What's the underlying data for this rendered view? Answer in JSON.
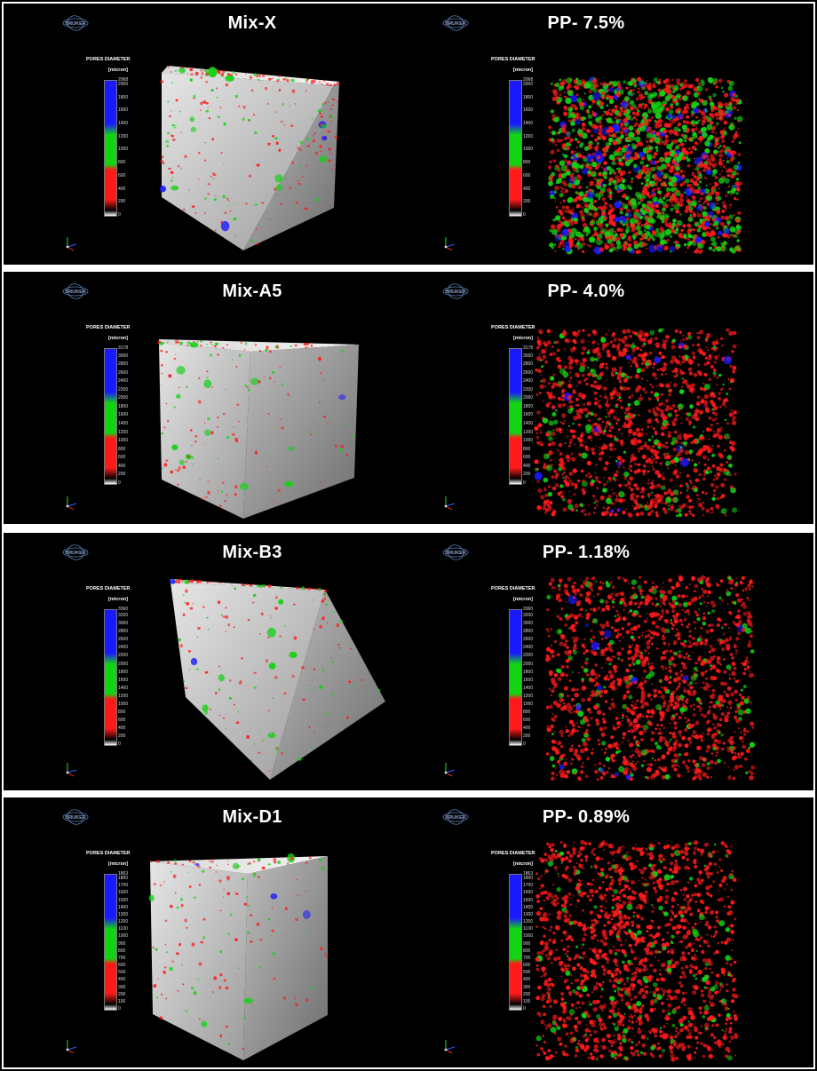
{
  "logo_text": "BRUKER",
  "legend": {
    "title": "PORES DIAMETER",
    "unit": "[micron]"
  },
  "colors": {
    "small": "#ff1a1a",
    "medium": "#14d214",
    "large": "#1a1aff",
    "background": "#000000"
  },
  "rows": [
    {
      "left_title": "Mix-X",
      "right_title": "PP- 7.5%",
      "legend_ticks": [
        "2068",
        "2000",
        "1800",
        "1600",
        "1400",
        "1200",
        "1000",
        "800",
        "600",
        "400",
        "200",
        "0"
      ],
      "left_specimen": "mostly gray cube with sparse pores",
      "right_specimen": "dense red pore cloud with green and blue pores"
    },
    {
      "left_title": "Mix-A5",
      "right_title": "PP- 4.0%",
      "legend_ticks": [
        "3178",
        "3000",
        "2800",
        "2600",
        "2400",
        "2200",
        "2000",
        "1800",
        "1600",
        "1400",
        "1200",
        "1000",
        "800",
        "600",
        "400",
        "200",
        "0"
      ],
      "left_specimen": "bright gray cube with sparse pores",
      "right_specimen": "red pore cloud with green pores"
    },
    {
      "left_title": "Mix-B3",
      "right_title": "PP- 1.18%",
      "legend_ticks": [
        "3360",
        "3200",
        "3000",
        "2800",
        "2600",
        "2400",
        "2200",
        "2000",
        "1800",
        "1600",
        "1400",
        "1200",
        "1000",
        "800",
        "600",
        "400",
        "200",
        "0"
      ],
      "left_specimen": "bright gray cube with sparse pores",
      "right_specimen": "red pore cloud with green pores"
    },
    {
      "left_title": "Mix-D1",
      "right_title": "PP- 0.89%",
      "legend_ticks": [
        "1863",
        "1800",
        "1700",
        "1600",
        "1500",
        "1400",
        "1300",
        "1200",
        "1100",
        "1000",
        "900",
        "800",
        "700",
        "600",
        "500",
        "400",
        "300",
        "200",
        "100",
        "0"
      ],
      "left_specimen": "gray cube with sparse pores",
      "right_specimen": "red pore cloud with green pores"
    }
  ]
}
